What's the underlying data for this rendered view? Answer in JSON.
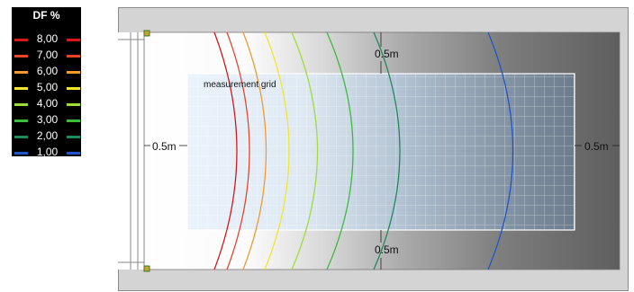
{
  "legend": {
    "title": "DF %",
    "items": [
      {
        "label": "8,00",
        "color": "#d7191c"
      },
      {
        "label": "7,00",
        "color": "#e8452a"
      },
      {
        "label": "6,00",
        "color": "#f29a2e"
      },
      {
        "label": "5,00",
        "color": "#f4e52d"
      },
      {
        "label": "4,00",
        "color": "#9fdc3a"
      },
      {
        "label": "3,00",
        "color": "#3dbb3d"
      },
      {
        "label": "2,00",
        "color": "#1f8a5a"
      },
      {
        "label": "1,00",
        "color": "#2156c9"
      }
    ]
  },
  "diagram": {
    "grid_label": "measurement grid",
    "margin_top": "0.5m",
    "margin_bottom": "0.5m",
    "margin_left": "0.5m",
    "margin_right": "0.5m"
  }
}
